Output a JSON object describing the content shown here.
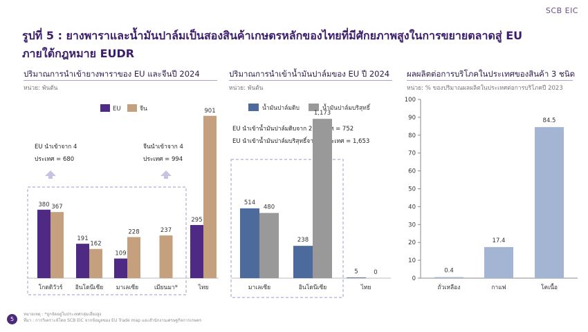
{
  "brand": "SCB EIC",
  "title_line1": "รูปที่ 5 : ยางพาราและน้ำมันปาล์มเป็นสองสินค้าเกษตรหลักของไทยที่มีศักยภาพสูงในการขยายตลาดสู่ EU",
  "title_line2": "ภายใต้กฎหมาย EUDR",
  "page_number": "5",
  "footnote_line1": "หมายเหตุ : *ถูกจัดอยู่ในประเทศกลุ่มเสี่ยงสูง",
  "footnote_line2": "ที่มา : การวิเคราะห์โดย SCB EIC จากข้อมูลของ EU Trade map และสำนักงานเศรษฐกิจการเกษตร",
  "colors": {
    "purple": "#4e2a84",
    "tan": "#c4a07e",
    "blue": "#4c6a9c",
    "gray": "#999999",
    "lightblue": "#a3b5d2",
    "title": "#3b1d6b"
  },
  "chart_data": [
    {
      "type": "bar",
      "title": "ปริมาณการนำเข้ายางพาราของ EU และจีนปี 2024",
      "unit": "หน่วย: พันตัน",
      "categories": [
        "โกตดิวัวร์",
        "อินโดนีเซีย",
        "มาเลเซีย",
        "เมียนมา*",
        "ไทย"
      ],
      "series": [
        {
          "name": "EU",
          "values": [
            380,
            191,
            109,
            null,
            295
          ]
        },
        {
          "name": "จีน",
          "values": [
            367,
            162,
            228,
            237,
            901
          ]
        }
      ],
      "value_labels": {
        "EU": [
          "380",
          "191",
          "109",
          "",
          "295"
        ],
        "จีน": [
          "367",
          "162",
          "228",
          "237",
          "901"
        ]
      },
      "annotations": [
        {
          "line1": "EU นำเข้าจาก 4",
          "line2": "ประเทศ  = 680"
        },
        {
          "line1": "จีนนำเข้าจาก 4",
          "line2": "ประเทศ  = 994"
        }
      ],
      "ylim": [
        0,
        950
      ],
      "legend": "top-center"
    },
    {
      "type": "bar",
      "title": "ปริมาณการนำเข้าน้ำมันปาล์มของ EU  ปี 2024",
      "unit": "หน่วย: พันตัน",
      "categories": [
        "มาเลเซีย",
        "อินโดนีเซีย",
        "ไทย"
      ],
      "series": [
        {
          "name": "น้ำมันปาล์มดิบ",
          "values": [
            514,
            238,
            5
          ]
        },
        {
          "name": "น้ำมันปาล์มบริสุทธิ์",
          "values": [
            480,
            1173,
            0
          ]
        }
      ],
      "value_labels": {
        "น้ำมันปาล์มดิบ": [
          "514",
          "238",
          "5"
        ],
        "น้ำมันปาล์มบริสุทธิ์": [
          "480",
          "1,173",
          "0"
        ]
      },
      "annotations": [
        {
          "text": "EU นำเข้าน้ำมันปาล์มดิบจาก 2 ประเทศ  = 752"
        },
        {
          "text": "EU นำเข้าน้ำมันปาล์มบริสุทธิ์จาก 2 ประเทศ  = 1,653"
        }
      ],
      "ylim": [
        0,
        1250
      ],
      "legend": "top-left"
    },
    {
      "type": "bar",
      "title": "ผลผลิตต่อการบริโภคในประเทศของสินค้า 3 ชนิด",
      "unit": "หน่วย: % ของปริมาณผลผลิตในประเทศต่อการบริโภคปี 2023",
      "categories": [
        "ถั่วเหลือง",
        "กาแฟ",
        "โคเนื้อ"
      ],
      "values": [
        0.4,
        17.4,
        84.5
      ],
      "value_labels": [
        "0.4",
        "17.4",
        "84.5"
      ],
      "ylim": [
        0,
        100
      ],
      "yticks": [
        "0",
        "10",
        "20",
        "30",
        "40",
        "50",
        "60",
        "70",
        "80",
        "90",
        "100"
      ],
      "grid": false
    }
  ]
}
